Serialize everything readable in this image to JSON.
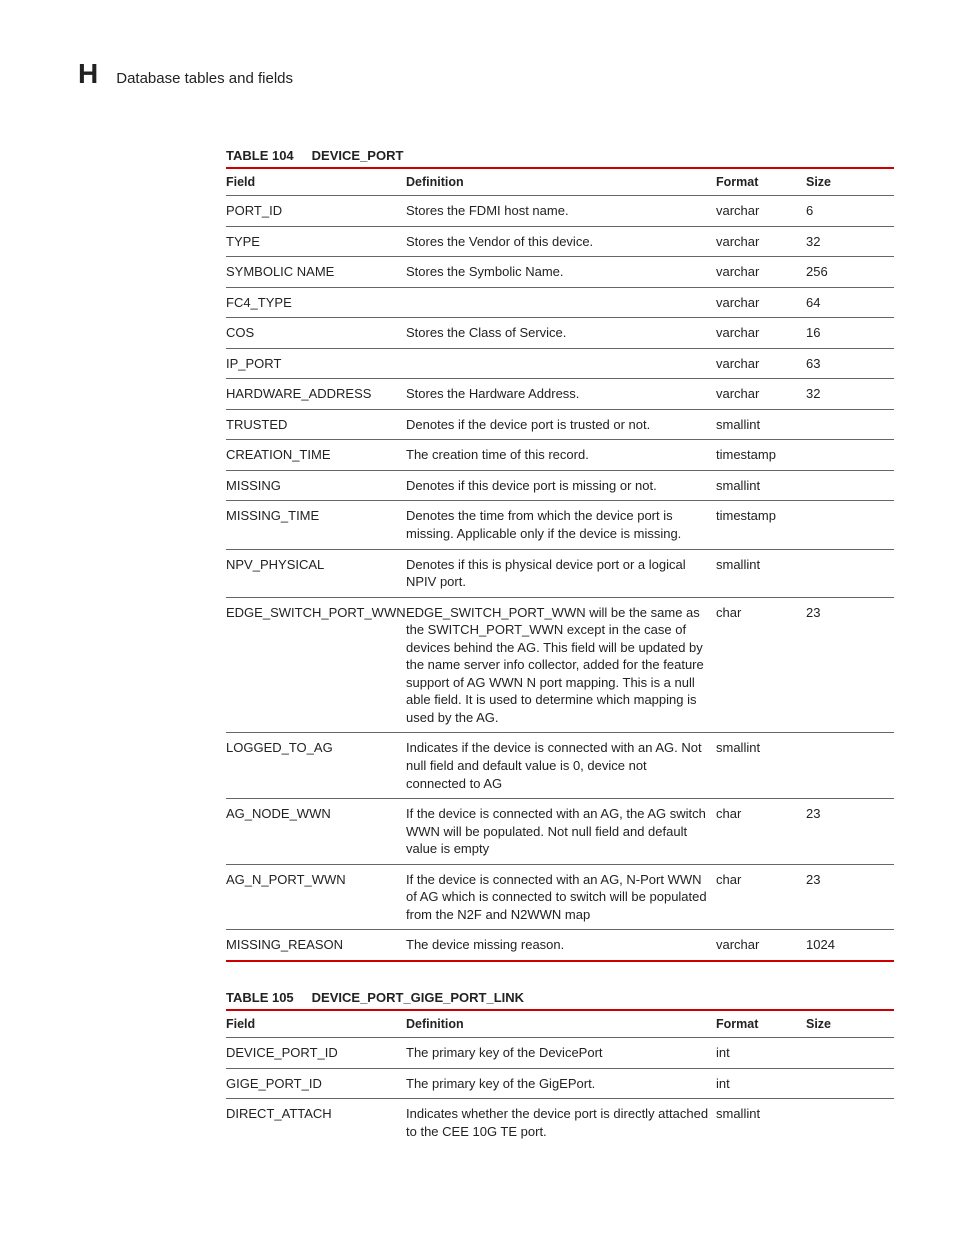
{
  "header": {
    "appendix_letter": "H",
    "page_title": "Database tables and fields"
  },
  "colors": {
    "rule_red": "#cc0000",
    "rule_grey": "#666666",
    "text": "#222222",
    "background": "#ffffff"
  },
  "typography": {
    "base_family": "Arial, Helvetica, sans-serif",
    "body_size_pt": 10,
    "caption_size_pt": 10,
    "header_letter_size_pt": 21
  },
  "tables": [
    {
      "caption_number": "TABLE 104",
      "caption_name": "DEVICE_PORT",
      "columns": [
        "Field",
        "Definition",
        "Format",
        "Size"
      ],
      "rows": [
        [
          "PORT_ID",
          "Stores the FDMI host name.",
          "varchar",
          "6"
        ],
        [
          "TYPE",
          "Stores the Vendor of this device.",
          "varchar",
          "32"
        ],
        [
          "SYMBOLIC NAME",
          "Stores the Symbolic Name.",
          "varchar",
          "256"
        ],
        [
          "FC4_TYPE",
          "",
          "varchar",
          "64"
        ],
        [
          "COS",
          "Stores the Class of Service.",
          "varchar",
          "16"
        ],
        [
          "IP_PORT",
          "",
          "varchar",
          "63"
        ],
        [
          "HARDWARE_ADDRESS",
          "Stores the Hardware Address.",
          "varchar",
          "32"
        ],
        [
          "TRUSTED",
          "Denotes if the device port is trusted or not.",
          "smallint",
          ""
        ],
        [
          "CREATION_TIME",
          "The creation time of this record.",
          "timestamp",
          ""
        ],
        [
          "MISSING",
          "Denotes if this device port is missing or not.",
          "smallint",
          ""
        ],
        [
          "MISSING_TIME",
          "Denotes the time from which the device port is missing. Applicable only if the device is missing.",
          "timestamp",
          ""
        ],
        [
          "NPV_PHYSICAL",
          "Denotes if this is physical device port or a logical NPIV port.",
          "smallint",
          ""
        ],
        [
          "EDGE_SWITCH_PORT_WWN",
          "EDGE_SWITCH_PORT_WWN will be the same as the SWITCH_PORT_WWN except in the case of devices behind the AG. This field will be updated by the name server info collector, added for the feature support of AG WWN N port mapping. This is a null able field. It is used to determine which mapping is used by the AG.",
          "char",
          "23"
        ],
        [
          "LOGGED_TO_AG",
          "Indicates if the device is connected with an AG. Not null field and default value is 0, device not connected to AG",
          "smallint",
          ""
        ],
        [
          "AG_NODE_WWN",
          "If the device is connected with an AG, the AG switch WWN will be populated. Not null field and default value is empty",
          "char",
          "23"
        ],
        [
          "AG_N_PORT_WWN",
          "If the device is connected with an AG, N-Port WWN of AG which is connected to switch will be populated from the N2F and N2WWN map",
          "char",
          "23"
        ],
        [
          "MISSING_REASON",
          "The device missing reason.",
          "varchar",
          "1024"
        ]
      ]
    },
    {
      "caption_number": "TABLE 105",
      "caption_name": "DEVICE_PORT_GIGE_PORT_LINK",
      "columns": [
        "Field",
        "Definition",
        "Format",
        "Size"
      ],
      "rows": [
        [
          "DEVICE_PORT_ID",
          "The primary key of the DevicePort",
          "int",
          ""
        ],
        [
          "GIGE_PORT_ID",
          "The primary key of the GigEPort.",
          "int",
          ""
        ],
        [
          "DIRECT_ATTACH",
          "Indicates whether the device port is directly attached to the CEE 10G TE port.",
          "smallint",
          ""
        ]
      ]
    }
  ]
}
